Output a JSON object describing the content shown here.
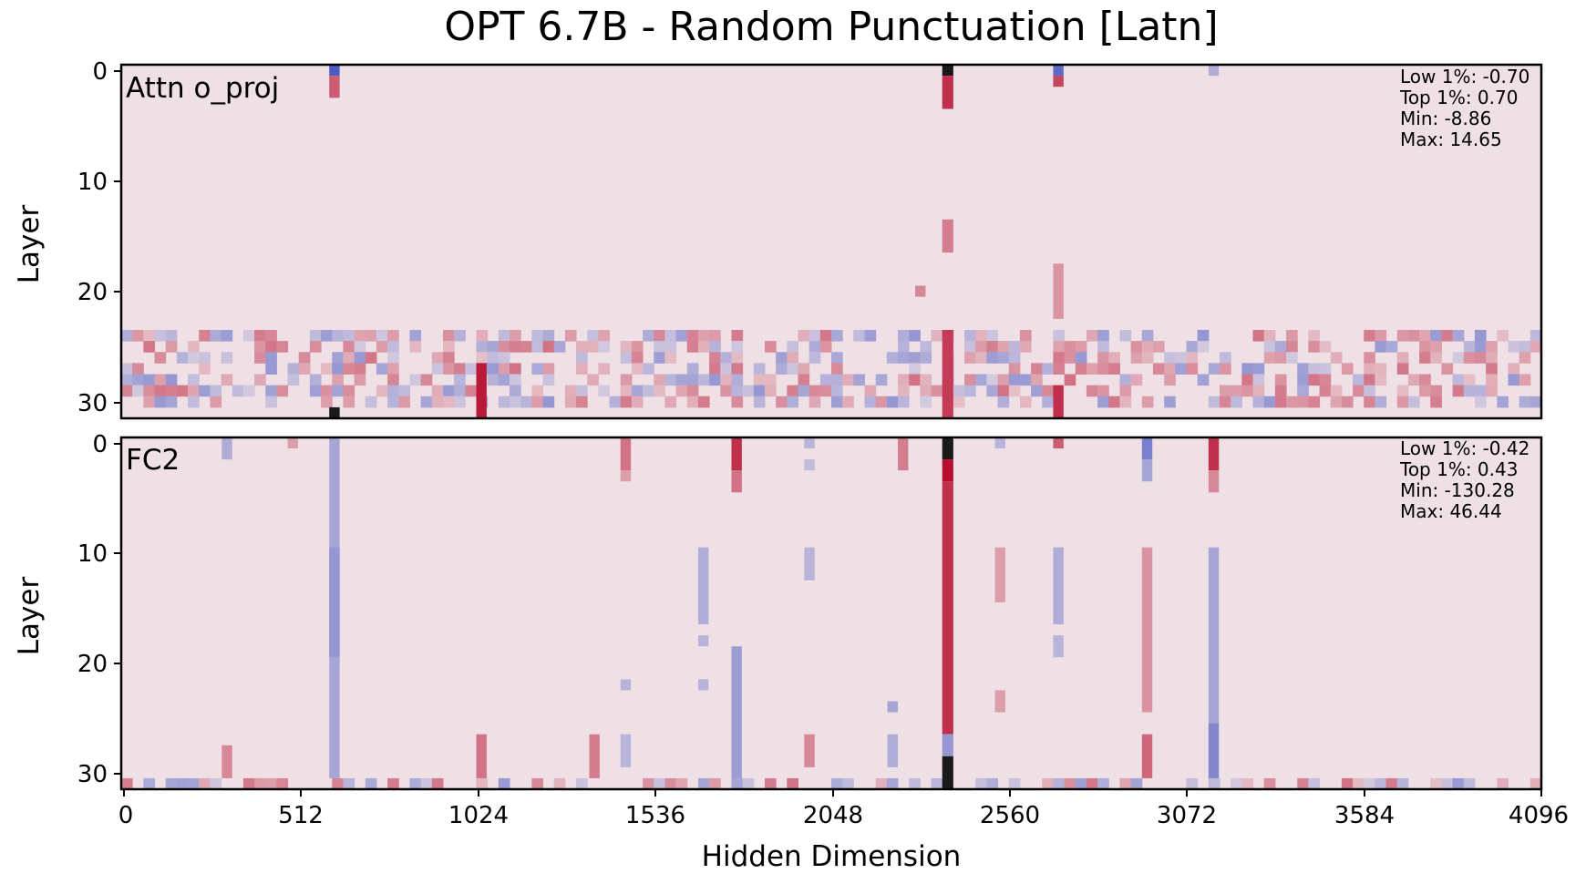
{
  "chart_data": {
    "type": "heatmap",
    "title": "OPT 6.7B - Random Punctuation [Latn]",
    "xlabel": "Hidden Dimension",
    "x_range": [
      0,
      4096
    ],
    "x_ticks": [
      "0",
      "512",
      "1024",
      "1536",
      "2048",
      "2560",
      "3072",
      "3584",
      "4096"
    ],
    "y_range": [
      0,
      32
    ],
    "colormap": {
      "low": "#3b4cc0",
      "mid": "#eee0e4",
      "high": "#b40426",
      "extreme": "#1a1a1a"
    },
    "panels": [
      {
        "label": "Attn o_proj",
        "ylabel": "Layer",
        "y_ticks": [
          "0",
          "10",
          "20",
          "30"
        ],
        "stats": [
          "Low 1%: -0.70",
          "Top 1%: 0.70",
          "Min: -8.86",
          "Max: 14.65"
        ],
        "sparse_rows": [
          24,
          31
        ],
        "features": [
          {
            "dim": 600,
            "width": 30,
            "layer_from": 0,
            "layer_to": 1,
            "value": -0.9
          },
          {
            "dim": 600,
            "width": 30,
            "layer_from": 1,
            "layer_to": 3,
            "value": 0.6
          },
          {
            "dim": 2368,
            "width": 32,
            "layer_from": 0,
            "layer_to": 1,
            "value": 1.0
          },
          {
            "dim": 2368,
            "width": 32,
            "layer_from": 1,
            "layer_to": 4,
            "value": 0.8
          },
          {
            "dim": 2368,
            "width": 32,
            "layer_from": 14,
            "layer_to": 17,
            "value": 0.45
          },
          {
            "dim": 2368,
            "width": 32,
            "layer_from": 24,
            "layer_to": 32,
            "value": 0.75
          },
          {
            "dim": 2688,
            "width": 30,
            "layer_from": 0,
            "layer_to": 1,
            "value": -0.8
          },
          {
            "dim": 2688,
            "width": 30,
            "layer_from": 1,
            "layer_to": 2,
            "value": 0.7
          },
          {
            "dim": 2688,
            "width": 30,
            "layer_from": 18,
            "layer_to": 23,
            "value": 0.35
          },
          {
            "dim": 3136,
            "width": 30,
            "layer_from": 0,
            "layer_to": 1,
            "value": -0.35
          },
          {
            "dim": 1024,
            "width": 30,
            "layer_from": 27,
            "layer_to": 32,
            "value": 0.9
          },
          {
            "dim": 2290,
            "width": 30,
            "layer_from": 20,
            "layer_to": 21,
            "value": 0.4
          },
          {
            "dim": 600,
            "width": 30,
            "layer_from": 31,
            "layer_to": 32,
            "value": 1.0
          },
          {
            "dim": 2688,
            "width": 30,
            "layer_from": 29,
            "layer_to": 32,
            "value": 0.8
          }
        ]
      },
      {
        "label": "FC2",
        "ylabel": "Layer",
        "y_ticks": [
          "0",
          "10",
          "20",
          "30"
        ],
        "stats": [
          "Low 1%: -0.42",
          "Top 1%: 0.43",
          "Min: -130.28",
          "Max: 46.44"
        ],
        "sparse_rows": [
          31,
          32
        ],
        "features": [
          {
            "dim": 290,
            "width": 30,
            "layer_from": 0,
            "layer_to": 2,
            "value": -0.35
          },
          {
            "dim": 480,
            "width": 30,
            "layer_from": 0,
            "layer_to": 1,
            "value": 0.3
          },
          {
            "dim": 600,
            "width": 30,
            "layer_from": 0,
            "layer_to": 31,
            "value": -0.4
          },
          {
            "dim": 600,
            "width": 30,
            "layer_from": 10,
            "layer_to": 20,
            "value": -0.5
          },
          {
            "dim": 1440,
            "width": 30,
            "layer_from": 0,
            "layer_to": 3,
            "value": 0.5
          },
          {
            "dim": 1440,
            "width": 30,
            "layer_from": 3,
            "layer_to": 4,
            "value": 0.3
          },
          {
            "dim": 1760,
            "width": 30,
            "layer_from": 0,
            "layer_to": 3,
            "value": 0.8
          },
          {
            "dim": 1760,
            "width": 30,
            "layer_from": 3,
            "layer_to": 5,
            "value": 0.5
          },
          {
            "dim": 1760,
            "width": 30,
            "layer_from": 19,
            "layer_to": 31,
            "value": -0.45
          },
          {
            "dim": 1664,
            "width": 30,
            "layer_from": 10,
            "layer_to": 17,
            "value": -0.35
          },
          {
            "dim": 1664,
            "width": 30,
            "layer_from": 18,
            "layer_to": 19,
            "value": -0.3
          },
          {
            "dim": 1664,
            "width": 30,
            "layer_from": 22,
            "layer_to": 23,
            "value": -0.3
          },
          {
            "dim": 1440,
            "width": 30,
            "layer_from": 22,
            "layer_to": 23,
            "value": -0.3
          },
          {
            "dim": 1970,
            "width": 30,
            "layer_from": 0,
            "layer_to": 1,
            "value": -0.3
          },
          {
            "dim": 1970,
            "width": 30,
            "layer_from": 1,
            "layer_to": 2,
            "value": 0.0
          },
          {
            "dim": 1970,
            "width": 30,
            "layer_from": 2,
            "layer_to": 3,
            "value": -0.25
          },
          {
            "dim": 1970,
            "width": 30,
            "layer_from": 10,
            "layer_to": 13,
            "value": -0.3
          },
          {
            "dim": 2240,
            "width": 30,
            "layer_from": 0,
            "layer_to": 3,
            "value": 0.45
          },
          {
            "dim": 2368,
            "width": 32,
            "layer_from": 0,
            "layer_to": 2,
            "value": 1.0
          },
          {
            "dim": 2368,
            "width": 32,
            "layer_from": 2,
            "layer_to": 4,
            "value": 0.95
          },
          {
            "dim": 2368,
            "width": 32,
            "layer_from": 4,
            "layer_to": 27,
            "value": 0.8
          },
          {
            "dim": 2368,
            "width": 32,
            "layer_from": 27,
            "layer_to": 29,
            "value": -0.5
          },
          {
            "dim": 2368,
            "width": 32,
            "layer_from": 29,
            "layer_to": 32,
            "value": -1.0
          },
          {
            "dim": 2210,
            "width": 30,
            "layer_from": 24,
            "layer_to": 25,
            "value": -0.4
          },
          {
            "dim": 2210,
            "width": 30,
            "layer_from": 27,
            "layer_to": 30,
            "value": -0.35
          },
          {
            "dim": 2520,
            "width": 30,
            "layer_from": 0,
            "layer_to": 1,
            "value": -0.3
          },
          {
            "dim": 2520,
            "width": 30,
            "layer_from": 10,
            "layer_to": 15,
            "value": 0.3
          },
          {
            "dim": 2520,
            "width": 30,
            "layer_from": 23,
            "layer_to": 25,
            "value": 0.3
          },
          {
            "dim": 2688,
            "width": 30,
            "layer_from": 0,
            "layer_to": 1,
            "value": 0.6
          },
          {
            "dim": 2688,
            "width": 30,
            "layer_from": 10,
            "layer_to": 17,
            "value": -0.35
          },
          {
            "dim": 2688,
            "width": 30,
            "layer_from": 18,
            "layer_to": 20,
            "value": -0.3
          },
          {
            "dim": 2944,
            "width": 30,
            "layer_from": 0,
            "layer_to": 2,
            "value": -0.65
          },
          {
            "dim": 2944,
            "width": 30,
            "layer_from": 2,
            "layer_to": 4,
            "value": -0.4
          },
          {
            "dim": 2944,
            "width": 30,
            "layer_from": 10,
            "layer_to": 25,
            "value": 0.35
          },
          {
            "dim": 2944,
            "width": 30,
            "layer_from": 27,
            "layer_to": 31,
            "value": 0.55
          },
          {
            "dim": 3136,
            "width": 30,
            "layer_from": 0,
            "layer_to": 3,
            "value": 0.8
          },
          {
            "dim": 3136,
            "width": 30,
            "layer_from": 3,
            "layer_to": 5,
            "value": 0.4
          },
          {
            "dim": 3136,
            "width": 30,
            "layer_from": 10,
            "layer_to": 26,
            "value": -0.4
          },
          {
            "dim": 3136,
            "width": 30,
            "layer_from": 26,
            "layer_to": 31,
            "value": -0.6
          },
          {
            "dim": 1024,
            "width": 30,
            "layer_from": 27,
            "layer_to": 31,
            "value": 0.5
          },
          {
            "dim": 1350,
            "width": 30,
            "layer_from": 27,
            "layer_to": 31,
            "value": 0.45
          },
          {
            "dim": 1440,
            "width": 30,
            "layer_from": 27,
            "layer_to": 30,
            "value": -0.3
          },
          {
            "dim": 1970,
            "width": 30,
            "layer_from": 27,
            "layer_to": 30,
            "value": 0.4
          },
          {
            "dim": 290,
            "width": 30,
            "layer_from": 28,
            "layer_to": 31,
            "value": 0.4
          }
        ]
      }
    ]
  }
}
